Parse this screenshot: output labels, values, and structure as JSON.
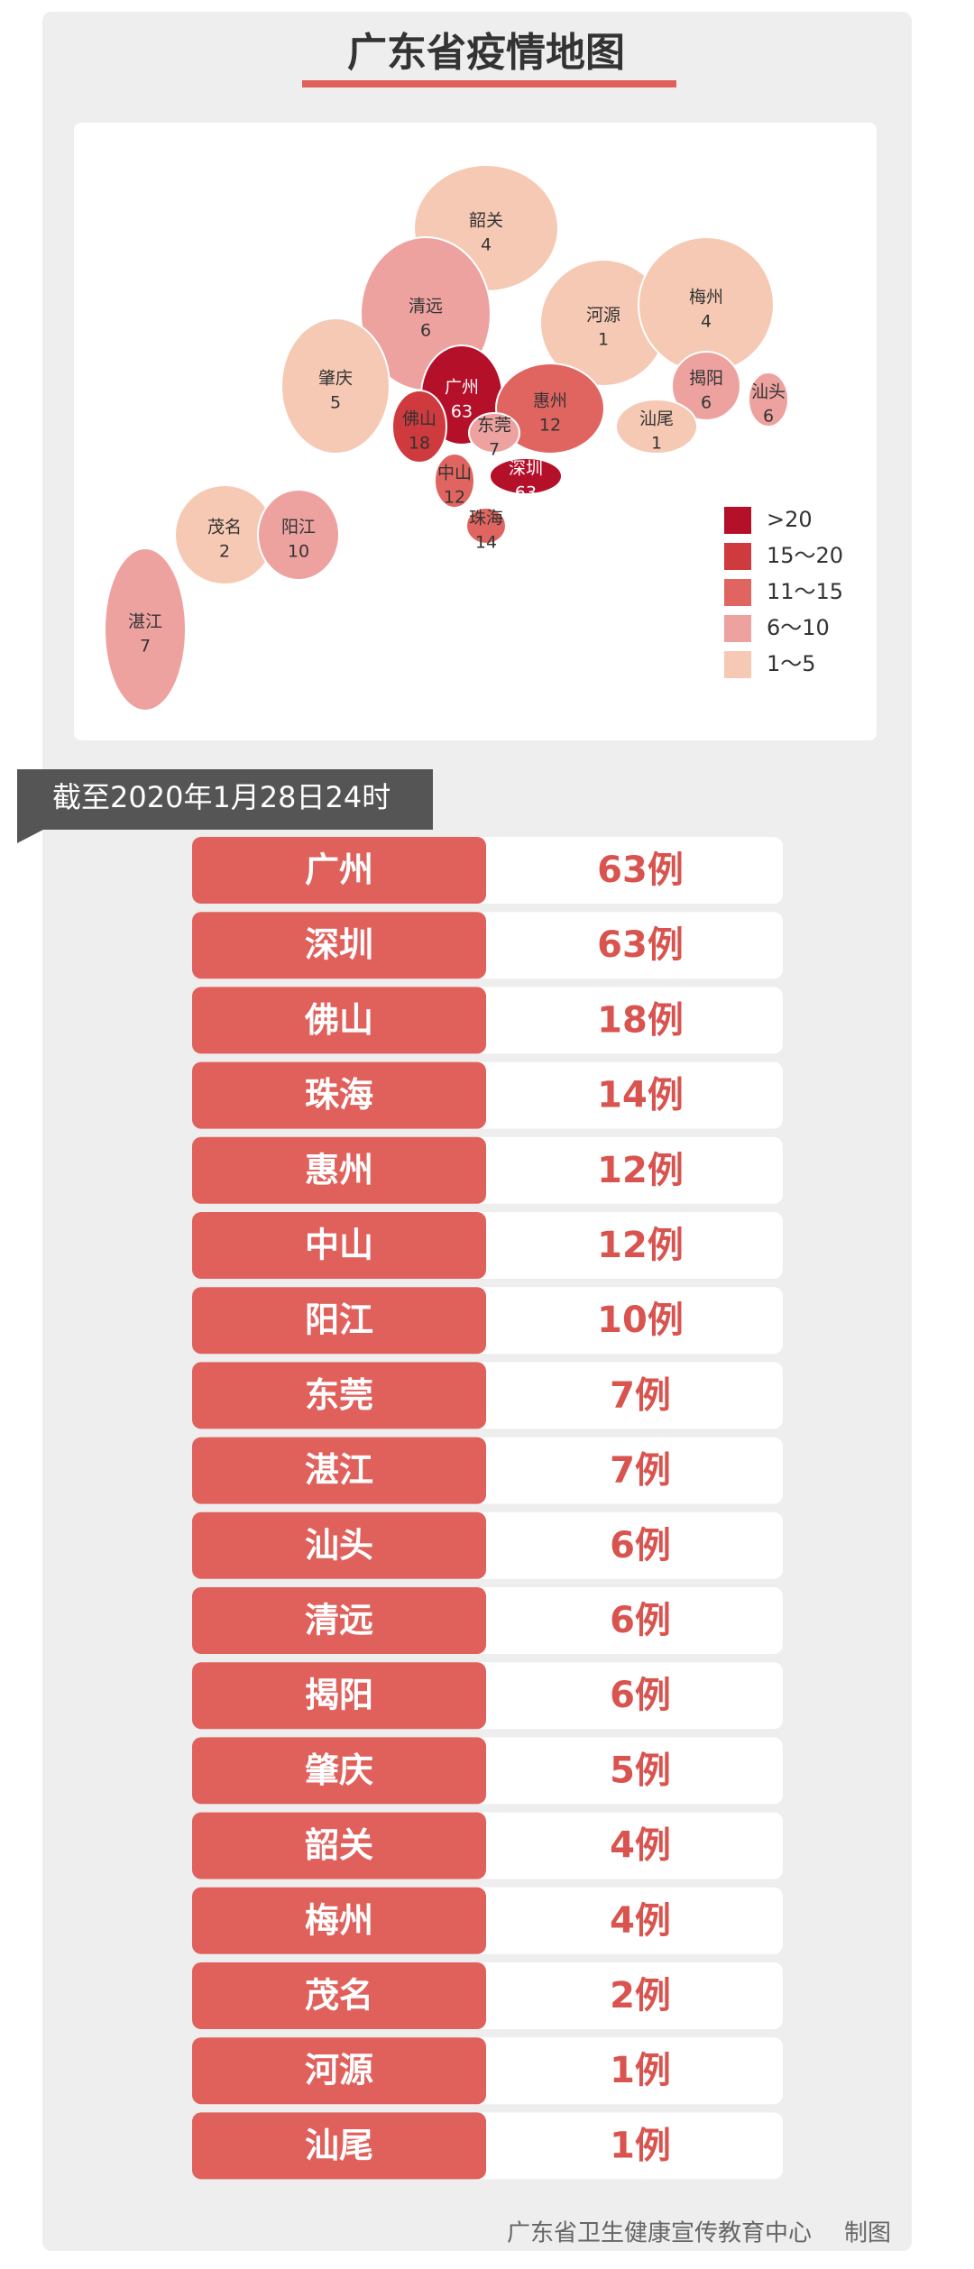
{
  "header": {
    "title": "广东省疫情地图"
  },
  "map": {
    "regions": [
      {
        "name": "韶关",
        "value": 4,
        "color": "#f6c9b4"
      },
      {
        "name": "清远",
        "value": 6,
        "color": "#eda2a0"
      },
      {
        "name": "河源",
        "value": 1,
        "color": "#f6c9b4"
      },
      {
        "name": "梅州",
        "value": 4,
        "color": "#f6c9b4"
      },
      {
        "name": "肇庆",
        "value": 5,
        "color": "#f6c9b4"
      },
      {
        "name": "广州",
        "value": 63,
        "color": "#b5102a"
      },
      {
        "name": "佛山",
        "value": 18,
        "color": "#cf3a3e"
      },
      {
        "name": "惠州",
        "value": 12,
        "color": "#e06560"
      },
      {
        "name": "东莞",
        "value": 7,
        "color": "#eda2a0"
      },
      {
        "name": "揭阳",
        "value": 6,
        "color": "#eda2a0"
      },
      {
        "name": "汕头",
        "value": 6,
        "color": "#eda2a0"
      },
      {
        "name": "汕尾",
        "value": 1,
        "color": "#f6c9b4"
      },
      {
        "name": "深圳",
        "value": 63,
        "color": "#b5102a"
      },
      {
        "name": "中山",
        "value": 12,
        "color": "#e06560"
      },
      {
        "name": "珠海",
        "value": 14,
        "color": "#e06560"
      },
      {
        "name": "茂名",
        "value": 2,
        "color": "#f6c9b4"
      },
      {
        "name": "阳江",
        "value": 10,
        "color": "#eda2a0"
      },
      {
        "name": "湛江",
        "value": 7,
        "color": "#eda2a0"
      }
    ],
    "legend": [
      {
        "label": ">20",
        "color": "#b5102a"
      },
      {
        "label": "15～20",
        "color": "#cf3a3e"
      },
      {
        "label": "11～15",
        "color": "#e06560"
      },
      {
        "label": "6～10",
        "color": "#eda2a0"
      },
      {
        "label": "1～5",
        "color": "#f6c9b4"
      }
    ]
  },
  "date_tag": "截至2020年1月28日24时",
  "table": {
    "rows": [
      {
        "name": "广州",
        "count": "63例"
      },
      {
        "name": "深圳",
        "count": "63例"
      },
      {
        "name": "佛山",
        "count": "18例"
      },
      {
        "name": "珠海",
        "count": "14例"
      },
      {
        "name": "惠州",
        "count": "12例"
      },
      {
        "name": "中山",
        "count": "12例"
      },
      {
        "name": "阳江",
        "count": "10例"
      },
      {
        "name": "东莞",
        "count": "7例"
      },
      {
        "name": "湛江",
        "count": "7例"
      },
      {
        "name": "汕头",
        "count": "6例"
      },
      {
        "name": "清远",
        "count": "6例"
      },
      {
        "name": "揭阳",
        "count": "6例"
      },
      {
        "name": "肇庆",
        "count": "5例"
      },
      {
        "name": "韶关",
        "count": "4例"
      },
      {
        "name": "梅州",
        "count": "4例"
      },
      {
        "name": "茂名",
        "count": "2例"
      },
      {
        "name": "河源",
        "count": "1例"
      },
      {
        "name": "汕尾",
        "count": "1例"
      }
    ]
  },
  "footer": {
    "credit": "广东省卫生健康宣传教育中心",
    "note": "制图"
  }
}
